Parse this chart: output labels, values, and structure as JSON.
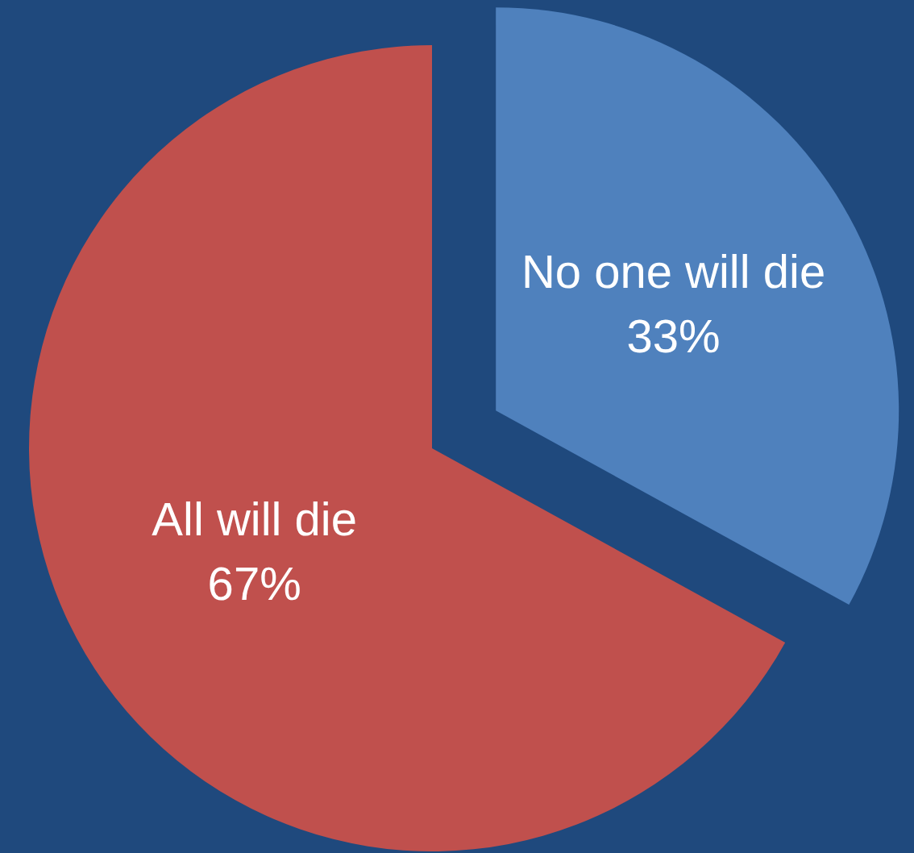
{
  "chart_data": {
    "type": "pie",
    "categories": [
      "No one will die",
      "All will die"
    ],
    "values": [
      33,
      67
    ],
    "colors": [
      "#4f81bd",
      "#c0504d"
    ],
    "value_labels": [
      "33%",
      "67%"
    ],
    "legend": false
  }
}
